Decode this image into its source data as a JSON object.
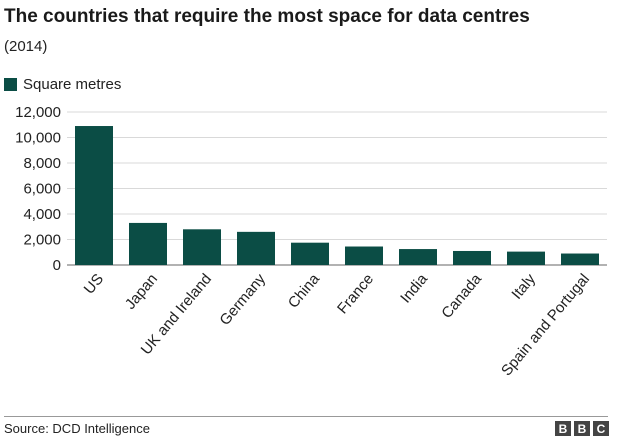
{
  "chart_data": {
    "type": "bar",
    "title": "The countries that require the most space for data centres",
    "subtitle": "(2014)",
    "legend": [
      {
        "name": "Square metres",
        "color": "#0b4d45"
      }
    ],
    "categories": [
      "US",
      "Japan",
      "UK and Ireland",
      "Germany",
      "China",
      "France",
      "India",
      "Canada",
      "Italy",
      "Spain and Portugal"
    ],
    "series": [
      {
        "name": "Square metres",
        "values": [
          10900,
          3300,
          2800,
          2600,
          1750,
          1450,
          1250,
          1100,
          1050,
          900
        ]
      }
    ],
    "yticks": [
      "0",
      "2,000",
      "4,000",
      "6,000",
      "8,000",
      "10,000",
      "12,000"
    ],
    "ylim": [
      0,
      12000
    ],
    "grid": true,
    "bar_color": "#0b4d45"
  },
  "footer": {
    "source": "Source: DCD Intelligence",
    "logo": [
      "B",
      "B",
      "C"
    ]
  }
}
